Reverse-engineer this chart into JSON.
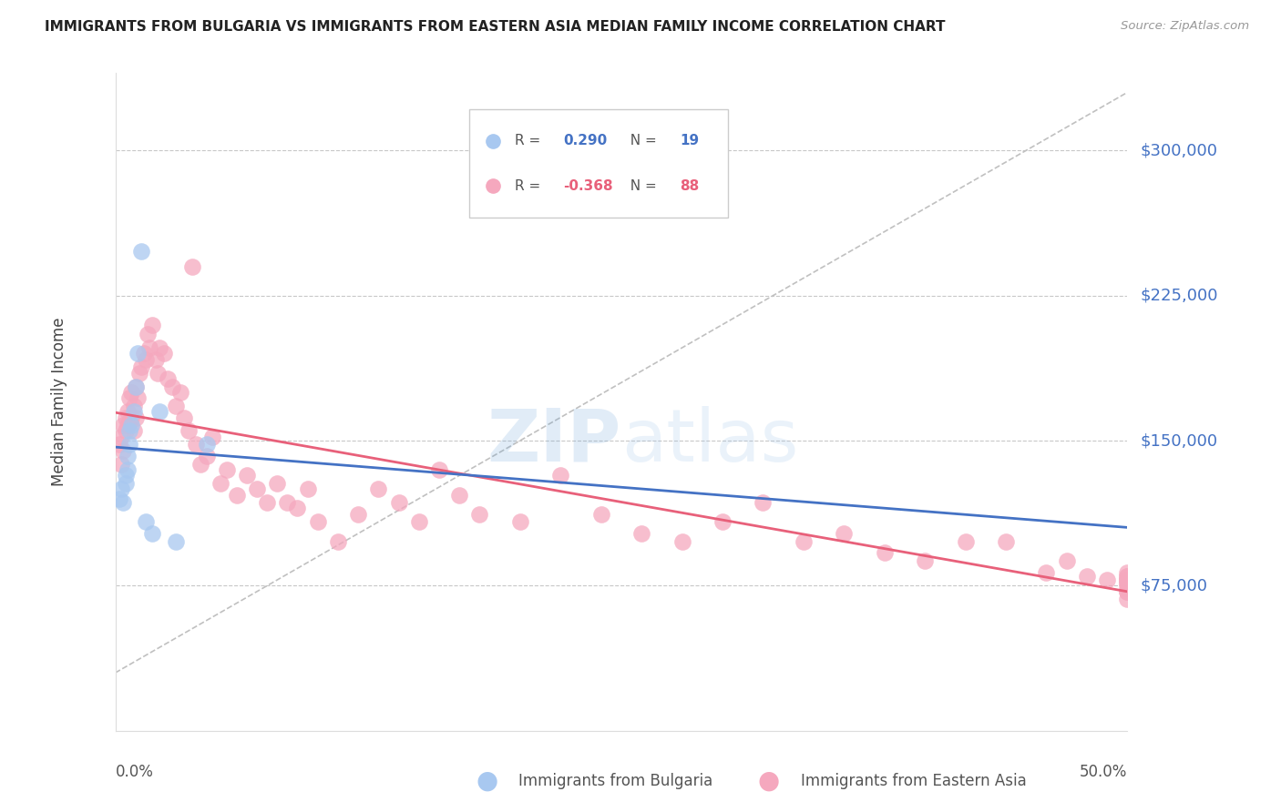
{
  "title": "IMMIGRANTS FROM BULGARIA VS IMMIGRANTS FROM EASTERN ASIA MEDIAN FAMILY INCOME CORRELATION CHART",
  "source": "Source: ZipAtlas.com",
  "ylabel": "Median Family Income",
  "yticks": [
    75000,
    150000,
    225000,
    300000
  ],
  "ytick_labels": [
    "$75,000",
    "$150,000",
    "$225,000",
    "$300,000"
  ],
  "ymin": 0,
  "ymax": 340000,
  "xmin": 0.0,
  "xmax": 0.5,
  "bulgaria_R": "0.290",
  "bulgaria_N": "19",
  "easternasia_R": "-0.368",
  "easternasia_N": "88",
  "bulgaria_color": "#a8c8f0",
  "easternasia_color": "#f5a8be",
  "bulgaria_line_color": "#4472c4",
  "easternasia_line_color": "#e8607a",
  "bg_color": "#ffffff",
  "grid_color": "#c8c8c8",
  "title_color": "#222222",
  "right_label_color": "#4472c4",
  "bulgaria_x": [
    0.002,
    0.003,
    0.004,
    0.005,
    0.005,
    0.006,
    0.006,
    0.007,
    0.007,
    0.008,
    0.009,
    0.01,
    0.011,
    0.013,
    0.015,
    0.018,
    0.022,
    0.03,
    0.045
  ],
  "bulgaria_y": [
    120000,
    125000,
    118000,
    128000,
    132000,
    135000,
    142000,
    148000,
    155000,
    158000,
    165000,
    178000,
    195000,
    248000,
    108000,
    102000,
    165000,
    98000,
    148000
  ],
  "easternasia_x": [
    0.002,
    0.003,
    0.003,
    0.004,
    0.004,
    0.005,
    0.005,
    0.006,
    0.006,
    0.007,
    0.007,
    0.008,
    0.008,
    0.009,
    0.009,
    0.01,
    0.01,
    0.011,
    0.012,
    0.013,
    0.014,
    0.015,
    0.016,
    0.017,
    0.018,
    0.02,
    0.021,
    0.022,
    0.024,
    0.026,
    0.028,
    0.03,
    0.032,
    0.034,
    0.036,
    0.038,
    0.04,
    0.042,
    0.045,
    0.048,
    0.052,
    0.055,
    0.06,
    0.065,
    0.07,
    0.075,
    0.08,
    0.085,
    0.09,
    0.095,
    0.1,
    0.11,
    0.12,
    0.13,
    0.14,
    0.15,
    0.16,
    0.17,
    0.18,
    0.2,
    0.22,
    0.24,
    0.26,
    0.28,
    0.3,
    0.32,
    0.34,
    0.36,
    0.38,
    0.4,
    0.42,
    0.44,
    0.46,
    0.47,
    0.48,
    0.49,
    0.5,
    0.5,
    0.5,
    0.5,
    0.5,
    0.5,
    0.5,
    0.5,
    0.5,
    0.5,
    0.5,
    0.5
  ],
  "easternasia_y": [
    148000,
    138000,
    152000,
    145000,
    158000,
    155000,
    162000,
    165000,
    158000,
    172000,
    160000,
    175000,
    162000,
    168000,
    155000,
    178000,
    162000,
    172000,
    185000,
    188000,
    195000,
    192000,
    205000,
    198000,
    210000,
    192000,
    185000,
    198000,
    195000,
    182000,
    178000,
    168000,
    175000,
    162000,
    155000,
    240000,
    148000,
    138000,
    142000,
    152000,
    128000,
    135000,
    122000,
    132000,
    125000,
    118000,
    128000,
    118000,
    115000,
    125000,
    108000,
    98000,
    112000,
    125000,
    118000,
    108000,
    135000,
    122000,
    112000,
    108000,
    132000,
    112000,
    102000,
    98000,
    108000,
    118000,
    98000,
    102000,
    92000,
    88000,
    98000,
    98000,
    82000,
    88000,
    80000,
    78000,
    76000,
    80000,
    82000,
    78000,
    72000,
    78000,
    80000,
    74000,
    72000,
    68000,
    78000,
    76000
  ]
}
